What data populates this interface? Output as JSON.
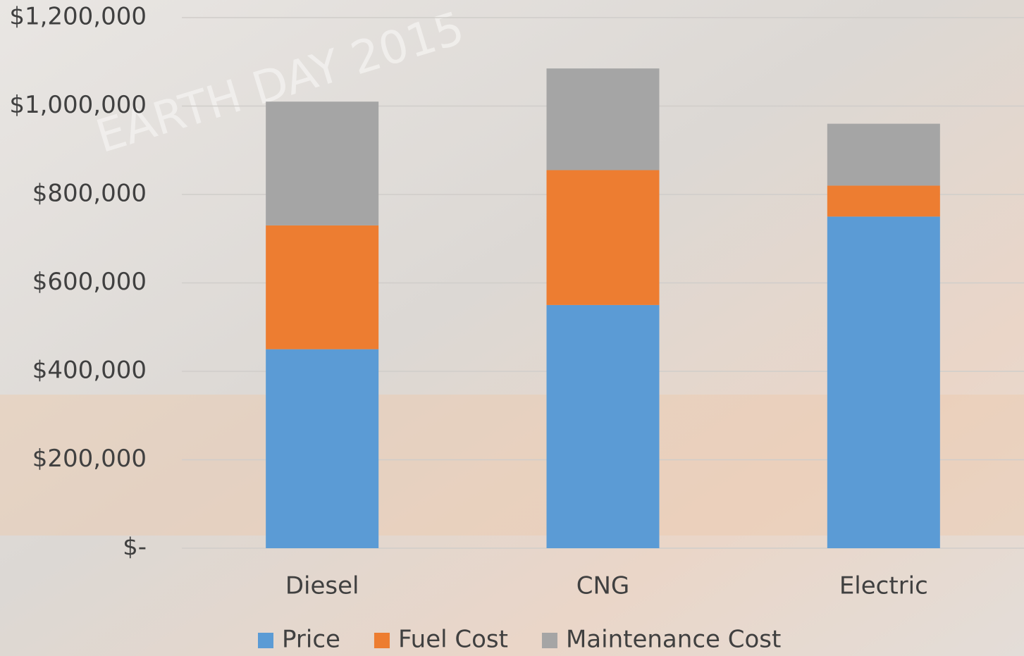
{
  "chart_data": {
    "type": "stacked_bar",
    "background_text": "EARTH DAY 2015",
    "categories": [
      "Diesel",
      "CNG",
      "Electric"
    ],
    "series": [
      {
        "name": "Price",
        "color": "#5b9bd5",
        "values": [
          450000,
          550000,
          750000
        ]
      },
      {
        "name": "Fuel Cost",
        "color": "#ed7d31",
        "values": [
          280000,
          305000,
          70000
        ]
      },
      {
        "name": "Maintenance Cost",
        "color": "#a5a5a5",
        "values": [
          280000,
          230000,
          140000
        ]
      }
    ],
    "ylim": [
      0,
      1200000
    ],
    "yticks": [
      {
        "value": 0,
        "label": "$-"
      },
      {
        "value": 200000,
        "label": "$200,000"
      },
      {
        "value": 400000,
        "label": "$400,000"
      },
      {
        "value": 600000,
        "label": "$600,000"
      },
      {
        "value": 800000,
        "label": "$800,000"
      },
      {
        "value": 1000000,
        "label": "$1,000,000"
      },
      {
        "value": 1200000,
        "label": "$1,200,000"
      }
    ],
    "grid": true,
    "legend": "bottom"
  }
}
